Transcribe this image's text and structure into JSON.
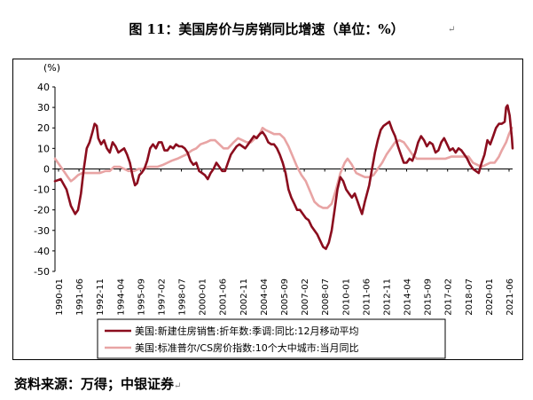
{
  "title": "图 11：美国房价与房销同比增速（单位：%）",
  "footnote": "资料来源：万得；中银证券",
  "paragraph_mark": "↵",
  "chart_data": {
    "type": "line",
    "unit_label": "(%)",
    "ylim": [
      -50,
      40
    ],
    "y_ticks": [
      40,
      30,
      20,
      10,
      0,
      -10,
      -20,
      -30,
      -40,
      -50
    ],
    "x_tick_labels": [
      "1990-01",
      "1991-06",
      "1992-11",
      "1994-04",
      "1995-09",
      "1997-02",
      "1998-07",
      "2000-01",
      "2001-06",
      "2002-11",
      "2004-04",
      "2005-09",
      "2007-02",
      "2008-07",
      "2010-01",
      "2011-06",
      "2012-11",
      "2014-04",
      "2015-09",
      "2017-02",
      "2018-07",
      "2020-01",
      "2021-06"
    ],
    "x_range": [
      1990.0,
      2021.75
    ],
    "grid": false,
    "legend_position": "bottom",
    "series": [
      {
        "name": "美国:新建住房销售:折年数:季调:同比:12月移动平均",
        "color": "#8b0d1e",
        "points": [
          [
            1990.0,
            -6
          ],
          [
            1990.4,
            -5
          ],
          [
            1990.8,
            -10
          ],
          [
            1991.1,
            -18
          ],
          [
            1991.4,
            -22
          ],
          [
            1991.6,
            -20
          ],
          [
            1991.8,
            -12
          ],
          [
            1992.0,
            0
          ],
          [
            1992.2,
            10
          ],
          [
            1992.4,
            13
          ],
          [
            1992.6,
            18
          ],
          [
            1992.75,
            22
          ],
          [
            1992.9,
            21
          ],
          [
            1993.0,
            15
          ],
          [
            1993.2,
            12
          ],
          [
            1993.4,
            14
          ],
          [
            1993.6,
            10
          ],
          [
            1993.8,
            8
          ],
          [
            1994.0,
            13
          ],
          [
            1994.2,
            11
          ],
          [
            1994.4,
            8
          ],
          [
            1994.6,
            9
          ],
          [
            1994.8,
            10
          ],
          [
            1995.0,
            7
          ],
          [
            1995.2,
            3
          ],
          [
            1995.4,
            -4
          ],
          [
            1995.55,
            -8
          ],
          [
            1995.7,
            -7
          ],
          [
            1995.85,
            -3
          ],
          [
            1996.0,
            -2
          ],
          [
            1996.2,
            0
          ],
          [
            1996.4,
            4
          ],
          [
            1996.6,
            10
          ],
          [
            1996.8,
            12
          ],
          [
            1997.0,
            10
          ],
          [
            1997.2,
            13
          ],
          [
            1997.4,
            13
          ],
          [
            1997.6,
            9
          ],
          [
            1997.8,
            9
          ],
          [
            1998.0,
            11
          ],
          [
            1998.2,
            10
          ],
          [
            1998.4,
            12
          ],
          [
            1998.6,
            11
          ],
          [
            1998.8,
            11
          ],
          [
            1999.0,
            10
          ],
          [
            1999.2,
            8
          ],
          [
            1999.4,
            4
          ],
          [
            1999.6,
            2
          ],
          [
            1999.8,
            3
          ],
          [
            2000.0,
            -1
          ],
          [
            2000.2,
            -2
          ],
          [
            2000.4,
            -3
          ],
          [
            2000.6,
            -5
          ],
          [
            2000.8,
            -2
          ],
          [
            2001.0,
            0
          ],
          [
            2001.2,
            3
          ],
          [
            2001.4,
            1
          ],
          [
            2001.6,
            -1
          ],
          [
            2001.8,
            -1
          ],
          [
            2002.0,
            3
          ],
          [
            2002.2,
            7
          ],
          [
            2002.4,
            9
          ],
          [
            2002.6,
            11
          ],
          [
            2002.8,
            12
          ],
          [
            2003.0,
            11
          ],
          [
            2003.2,
            10
          ],
          [
            2003.4,
            12
          ],
          [
            2003.6,
            14
          ],
          [
            2003.8,
            16
          ],
          [
            2004.0,
            15
          ],
          [
            2004.2,
            17
          ],
          [
            2004.4,
            18
          ],
          [
            2004.6,
            16
          ],
          [
            2004.8,
            13
          ],
          [
            2005.0,
            12
          ],
          [
            2005.2,
            12
          ],
          [
            2005.4,
            10
          ],
          [
            2005.6,
            7
          ],
          [
            2005.8,
            3
          ],
          [
            2006.0,
            -2
          ],
          [
            2006.2,
            -10
          ],
          [
            2006.4,
            -14
          ],
          [
            2006.6,
            -17
          ],
          [
            2006.8,
            -20
          ],
          [
            2007.0,
            -20
          ],
          [
            2007.2,
            -22
          ],
          [
            2007.4,
            -24
          ],
          [
            2007.6,
            -25
          ],
          [
            2007.8,
            -28
          ],
          [
            2008.0,
            -30
          ],
          [
            2008.2,
            -32
          ],
          [
            2008.4,
            -35
          ],
          [
            2008.6,
            -38
          ],
          [
            2008.8,
            -39
          ],
          [
            2009.0,
            -36
          ],
          [
            2009.2,
            -30
          ],
          [
            2009.4,
            -20
          ],
          [
            2009.6,
            -10
          ],
          [
            2009.8,
            -4
          ],
          [
            2010.0,
            -6
          ],
          [
            2010.2,
            -10
          ],
          [
            2010.4,
            -12
          ],
          [
            2010.6,
            -14
          ],
          [
            2010.8,
            -12
          ],
          [
            2011.0,
            -16
          ],
          [
            2011.2,
            -20
          ],
          [
            2011.3,
            -22
          ],
          [
            2011.5,
            -16
          ],
          [
            2011.8,
            -8
          ],
          [
            2012.0,
            0
          ],
          [
            2012.2,
            8
          ],
          [
            2012.4,
            14
          ],
          [
            2012.6,
            19
          ],
          [
            2012.8,
            21
          ],
          [
            2013.0,
            22
          ],
          [
            2013.2,
            23
          ],
          [
            2013.4,
            19
          ],
          [
            2013.6,
            16
          ],
          [
            2013.8,
            11
          ],
          [
            2014.0,
            7
          ],
          [
            2014.2,
            3
          ],
          [
            2014.4,
            3
          ],
          [
            2014.6,
            5
          ],
          [
            2014.8,
            4
          ],
          [
            2015.0,
            8
          ],
          [
            2015.2,
            13
          ],
          [
            2015.4,
            16
          ],
          [
            2015.6,
            14
          ],
          [
            2015.8,
            11
          ],
          [
            2016.0,
            13
          ],
          [
            2016.2,
            12
          ],
          [
            2016.4,
            8
          ],
          [
            2016.6,
            9
          ],
          [
            2016.8,
            13
          ],
          [
            2017.0,
            15
          ],
          [
            2017.2,
            12
          ],
          [
            2017.4,
            9
          ],
          [
            2017.6,
            10
          ],
          [
            2017.8,
            8
          ],
          [
            2018.0,
            10
          ],
          [
            2018.2,
            9
          ],
          [
            2018.4,
            7
          ],
          [
            2018.6,
            5
          ],
          [
            2018.8,
            2
          ],
          [
            2019.0,
            0
          ],
          [
            2019.2,
            -1
          ],
          [
            2019.4,
            -2
          ],
          [
            2019.6,
            3
          ],
          [
            2019.8,
            7
          ],
          [
            2020.0,
            14
          ],
          [
            2020.2,
            12
          ],
          [
            2020.4,
            16
          ],
          [
            2020.6,
            20
          ],
          [
            2020.8,
            22
          ],
          [
            2021.0,
            22
          ],
          [
            2021.2,
            23
          ],
          [
            2021.3,
            30
          ],
          [
            2021.4,
            31
          ],
          [
            2021.55,
            26
          ],
          [
            2021.7,
            15
          ],
          [
            2021.75,
            10
          ]
        ]
      },
      {
        "name": "美国:标准普尔/CS房价指数:10个大中城市:当月同比",
        "color": "#e8a4a4",
        "points": [
          [
            1990.0,
            5
          ],
          [
            1990.3,
            2
          ],
          [
            1990.6,
            -1
          ],
          [
            1990.9,
            -4
          ],
          [
            1991.1,
            -6
          ],
          [
            1991.3,
            -5
          ],
          [
            1991.6,
            -3
          ],
          [
            1991.9,
            -2
          ],
          [
            1992.2,
            -2
          ],
          [
            1992.5,
            -2
          ],
          [
            1992.8,
            -2
          ],
          [
            1993.1,
            -2
          ],
          [
            1993.5,
            -1
          ],
          [
            1993.8,
            -1
          ],
          [
            1994.1,
            1
          ],
          [
            1994.5,
            1
          ],
          [
            1994.8,
            0
          ],
          [
            1995.1,
            -1
          ],
          [
            1995.5,
            -1
          ],
          [
            1995.8,
            0
          ],
          [
            1996.1,
            0
          ],
          [
            1996.5,
            1
          ],
          [
            1996.8,
            1
          ],
          [
            1997.1,
            1
          ],
          [
            1997.5,
            2
          ],
          [
            1997.8,
            3
          ],
          [
            1998.1,
            4
          ],
          [
            1998.5,
            5
          ],
          [
            1998.8,
            6
          ],
          [
            1999.1,
            7
          ],
          [
            1999.5,
            9
          ],
          [
            1999.8,
            10
          ],
          [
            2000.1,
            12
          ],
          [
            2000.5,
            13
          ],
          [
            2000.8,
            14
          ],
          [
            2001.1,
            14
          ],
          [
            2001.4,
            12
          ],
          [
            2001.7,
            10
          ],
          [
            2002.0,
            10
          ],
          [
            2002.4,
            13
          ],
          [
            2002.7,
            15
          ],
          [
            2003.0,
            14
          ],
          [
            2003.3,
            13
          ],
          [
            2003.6,
            13
          ],
          [
            2003.9,
            15
          ],
          [
            2004.2,
            17
          ],
          [
            2004.4,
            20
          ],
          [
            2004.6,
            19
          ],
          [
            2004.9,
            18
          ],
          [
            2005.2,
            17
          ],
          [
            2005.6,
            17
          ],
          [
            2005.9,
            15
          ],
          [
            2006.2,
            11
          ],
          [
            2006.5,
            6
          ],
          [
            2006.8,
            1
          ],
          [
            2007.1,
            -3
          ],
          [
            2007.4,
            -6
          ],
          [
            2007.7,
            -11
          ],
          [
            2008.0,
            -16
          ],
          [
            2008.3,
            -18
          ],
          [
            2008.6,
            -19
          ],
          [
            2008.9,
            -19
          ],
          [
            2009.2,
            -17
          ],
          [
            2009.5,
            -10
          ],
          [
            2009.8,
            -2
          ],
          [
            2010.1,
            3
          ],
          [
            2010.3,
            5
          ],
          [
            2010.6,
            2
          ],
          [
            2010.9,
            -2
          ],
          [
            2011.2,
            -3
          ],
          [
            2011.5,
            -4
          ],
          [
            2011.8,
            -4
          ],
          [
            2012.1,
            -3
          ],
          [
            2012.4,
            0
          ],
          [
            2012.7,
            3
          ],
          [
            2013.0,
            7
          ],
          [
            2013.3,
            10
          ],
          [
            2013.6,
            13
          ],
          [
            2013.9,
            14
          ],
          [
            2014.2,
            13
          ],
          [
            2014.5,
            10
          ],
          [
            2014.8,
            7
          ],
          [
            2015.1,
            5
          ],
          [
            2015.5,
            5
          ],
          [
            2015.8,
            5
          ],
          [
            2016.1,
            5
          ],
          [
            2016.5,
            5
          ],
          [
            2016.8,
            5
          ],
          [
            2017.1,
            5
          ],
          [
            2017.5,
            6
          ],
          [
            2017.8,
            6
          ],
          [
            2018.1,
            6
          ],
          [
            2018.4,
            6
          ],
          [
            2018.7,
            6
          ],
          [
            2019.0,
            3
          ],
          [
            2019.3,
            2
          ],
          [
            2019.6,
            1
          ],
          [
            2019.9,
            2
          ],
          [
            2020.2,
            3
          ],
          [
            2020.5,
            3
          ],
          [
            2020.8,
            6
          ],
          [
            2021.0,
            9
          ],
          [
            2021.3,
            13
          ],
          [
            2021.5,
            17
          ],
          [
            2021.7,
            20
          ]
        ]
      }
    ]
  }
}
